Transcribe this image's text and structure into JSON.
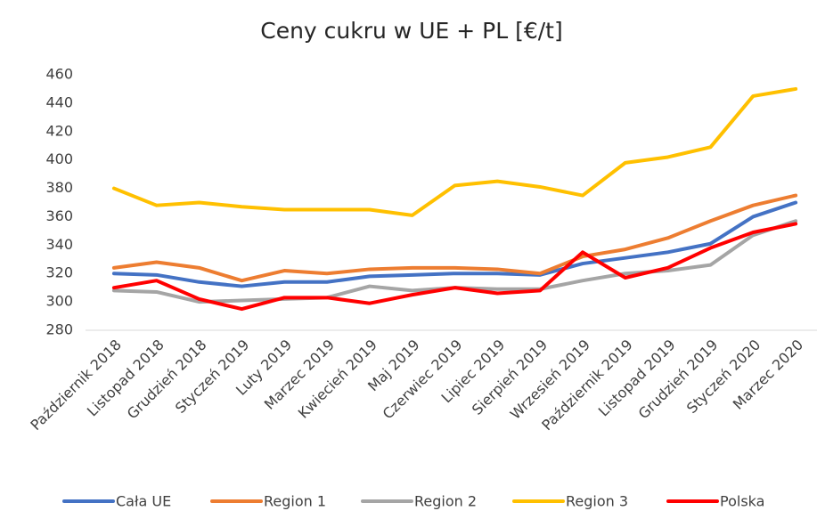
{
  "chart_data": {
    "type": "line",
    "title": "Ceny cukru w UE + PL [€/t]",
    "categories": [
      "Październik 2018",
      "Listopad 2018",
      "Grudzień 2018",
      "Styczeń 2019",
      "Luty 2019",
      "Marzec 2019",
      "Kwiecień 2019",
      "Maj 2019",
      "Czerwiec 2019",
      "Lipiec 2019",
      "Sierpień 2019",
      "Wrzesień 2019",
      "Październik 2019",
      "Listopad 2019",
      "Grudzień 2019",
      "Styczeń 2020",
      "Marzec 2020"
    ],
    "series": [
      {
        "name": "Cała UE",
        "color": "#4472c4",
        "values": [
          320,
          319,
          314,
          311,
          314,
          314,
          318,
          319,
          320,
          320,
          319,
          327,
          331,
          335,
          341,
          360,
          370
        ]
      },
      {
        "name": "Region 1",
        "color": "#ed7d31",
        "values": [
          324,
          328,
          324,
          315,
          322,
          320,
          323,
          324,
          324,
          323,
          320,
          332,
          337,
          345,
          357,
          368,
          375
        ]
      },
      {
        "name": "Region 2",
        "color": "#a5a5a5",
        "values": [
          308,
          307,
          300,
          301,
          302,
          303,
          311,
          308,
          310,
          309,
          309,
          315,
          320,
          322,
          326,
          347,
          357
        ]
      },
      {
        "name": "Region 3",
        "color": "#ffc000",
        "values": [
          380,
          368,
          370,
          367,
          365,
          365,
          365,
          361,
          382,
          385,
          381,
          375,
          398,
          402,
          409,
          445,
          450
        ]
      },
      {
        "name": "Polska",
        "color": "#ff0000",
        "values": [
          310,
          315,
          302,
          295,
          303,
          303,
          299,
          305,
          310,
          306,
          308,
          335,
          317,
          324,
          338,
          349,
          355
        ]
      }
    ],
    "ylim": [
      280,
      460
    ],
    "yticks": [
      280,
      300,
      320,
      340,
      360,
      380,
      400,
      420,
      440,
      460
    ],
    "legend": "bottom"
  }
}
